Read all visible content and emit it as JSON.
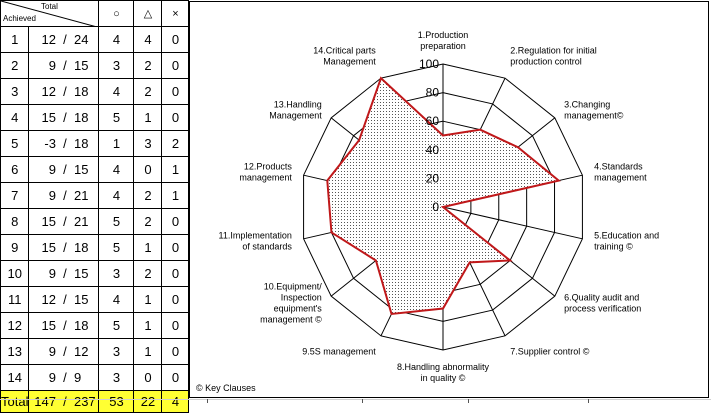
{
  "table": {
    "header": {
      "total": "Total",
      "achieved": "Achieved",
      "circle": "○",
      "triangle": "△",
      "cross": "×"
    },
    "rows": [
      {
        "no": "1",
        "achieved": "12",
        "total": "24",
        "circle": "4",
        "triangle": "4",
        "cross": "0"
      },
      {
        "no": "2",
        "achieved": "9",
        "total": "15",
        "circle": "3",
        "triangle": "2",
        "cross": "0"
      },
      {
        "no": "3",
        "achieved": "12",
        "total": "18",
        "circle": "4",
        "triangle": "2",
        "cross": "0"
      },
      {
        "no": "4",
        "achieved": "15",
        "total": "18",
        "circle": "5",
        "triangle": "1",
        "cross": "0"
      },
      {
        "no": "5",
        "achieved": "-3",
        "total": "18",
        "circle": "1",
        "triangle": "3",
        "cross": "2"
      },
      {
        "no": "6",
        "achieved": "9",
        "total": "15",
        "circle": "4",
        "triangle": "0",
        "cross": "1"
      },
      {
        "no": "7",
        "achieved": "9",
        "total": "21",
        "circle": "4",
        "triangle": "2",
        "cross": "1"
      },
      {
        "no": "8",
        "achieved": "15",
        "total": "21",
        "circle": "5",
        "triangle": "2",
        "cross": "0"
      },
      {
        "no": "9",
        "achieved": "15",
        "total": "18",
        "circle": "5",
        "triangle": "1",
        "cross": "0"
      },
      {
        "no": "10",
        "achieved": "9",
        "total": "15",
        "circle": "3",
        "triangle": "2",
        "cross": "0"
      },
      {
        "no": "11",
        "achieved": "12",
        "total": "15",
        "circle": "4",
        "triangle": "1",
        "cross": "0"
      },
      {
        "no": "12",
        "achieved": "15",
        "total": "18",
        "circle": "5",
        "triangle": "1",
        "cross": "0"
      },
      {
        "no": "13",
        "achieved": "9",
        "total": "12",
        "circle": "3",
        "triangle": "1",
        "cross": "0"
      },
      {
        "no": "14",
        "achieved": "9",
        "total": "9",
        "circle": "3",
        "triangle": "0",
        "cross": "0"
      }
    ],
    "total_row": {
      "label": "Total",
      "achieved": "147",
      "total": "237",
      "circle": "53",
      "triangle": "22",
      "cross": "4"
    }
  },
  "chart_data": {
    "type": "radar",
    "categories": [
      "1.Production\npreparation",
      "2.Regulation for initial\nproduction control",
      "3.Changing\nmanagement©",
      "4.Standards\nmanagement",
      "5.Education and\ntraining ©",
      "6.Quality audit and\nprocess verification",
      "7.Supplier control ©",
      "8.Handling abnormality\nin quality ©",
      "9.5S management",
      "10.Equipment/\nInspection\nequipment's\nmanagement ©",
      "11.Implementation\nof standards",
      "12.Products\nmanagement",
      "13.Handling\nManagement",
      "14.Critical parts\nManagement"
    ],
    "values": [
      50,
      60,
      67,
      83,
      0,
      60,
      43,
      71,
      83,
      60,
      80,
      83,
      75,
      100
    ],
    "ticks": [
      0,
      20,
      40,
      60,
      80,
      100
    ],
    "tick_labels": [
      "0",
      "20",
      "40",
      "60",
      "80",
      "100"
    ],
    "rlim": [
      0,
      100
    ],
    "series_color": "#c0181a",
    "fill": "dotted",
    "copyright": "© Key Clauses"
  }
}
